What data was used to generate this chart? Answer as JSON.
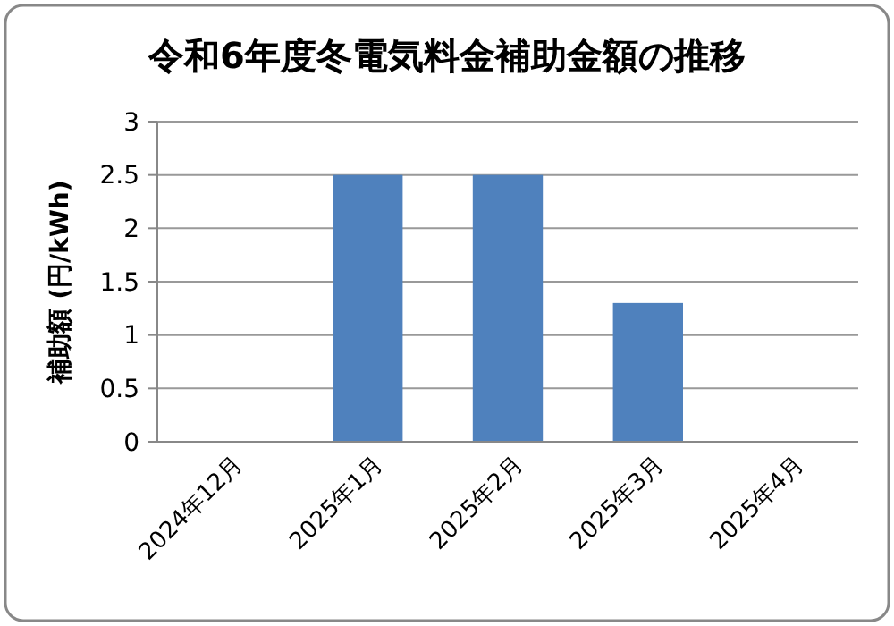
{
  "chart_data": {
    "type": "bar",
    "title": "令和6年度冬電気料金補助金額の推移",
    "ylabel": "補助額 (円/kWh)",
    "categories": [
      "2024年12月",
      "2025年1月",
      "2025年2月",
      "2025年3月",
      "2025年4月"
    ],
    "values": [
      0,
      2.5,
      2.5,
      1.3,
      0
    ],
    "color": "#4f81bd",
    "ylim": [
      0,
      3
    ],
    "yticks": [
      0,
      0.5,
      1,
      1.5,
      2,
      2.5,
      3
    ],
    "grid": "y"
  }
}
